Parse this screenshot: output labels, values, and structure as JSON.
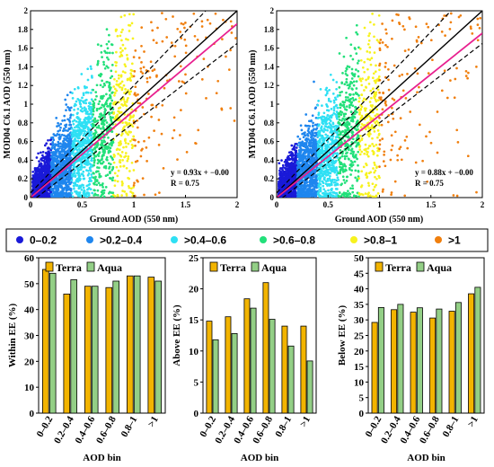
{
  "colors": {
    "bins": [
      "#1a1ad8",
      "#1f86ee",
      "#2ee0f4",
      "#22e07a",
      "#f7f21e",
      "#f07f0e"
    ],
    "fit_line": "#e8208f",
    "terra": "#f2b400",
    "aqua": "#93cf86"
  },
  "legend": {
    "bins": [
      "0–0.2",
      ">0.2–0.4",
      ">0.4–0.6",
      ">0.6–0.8",
      ">0.8–1",
      ">1"
    ]
  },
  "chart_data": [
    {
      "id": "terra-scatter",
      "type": "scatter",
      "xlabel": "Ground AOD (550 nm)",
      "ylabel": "MOD04 C6.1 AOD (550 nm)",
      "xlim": [
        0,
        2
      ],
      "ylim": [
        0,
        2
      ],
      "xticks": [
        "0",
        "0.5",
        "1",
        "1.5",
        "2"
      ],
      "yticks": [
        "0",
        "0.2",
        "0.4",
        "0.6",
        "0.8",
        "1",
        "1.2",
        "1.4",
        "1.6",
        "1.8",
        "2"
      ],
      "fit": {
        "slope": 0.93,
        "intercept": 0.0
      },
      "annotation": [
        "y = 0.93x + −0.00",
        "R = 0.75"
      ]
    },
    {
      "id": "aqua-scatter",
      "type": "scatter",
      "xlabel": "Ground AOD (550 nm)",
      "ylabel": "MYD04 C6.1 AOD (550 nm)",
      "xlim": [
        0,
        2
      ],
      "ylim": [
        0,
        2
      ],
      "xticks": [
        "0",
        "0.5",
        "1",
        "1.5",
        "2"
      ],
      "yticks": [
        "0",
        "0.2",
        "0.4",
        "0.6",
        "0.8",
        "1",
        "1.2",
        "1.4",
        "1.6",
        "1.8",
        "2"
      ],
      "fit": {
        "slope": 0.88,
        "intercept": 0.0
      },
      "annotation": [
        "y = 0.88x + −0.00",
        "R = 0.75"
      ]
    },
    {
      "id": "within-ee",
      "type": "bar",
      "categories": [
        "0–0.2",
        "0.2–0.4",
        "0.4–0.6",
        "0.6–0.8",
        "0.8–1",
        ">1"
      ],
      "xlabel": "AOD bin",
      "ylabel": "Within EE (%)",
      "ylim": [
        0,
        60
      ],
      "yticks": [
        "0",
        "10",
        "20",
        "30",
        "40",
        "50",
        "60"
      ],
      "series": [
        {
          "name": "Terra",
          "values": [
            55.5,
            46.0,
            49.0,
            48.5,
            53.0,
            52.5
          ]
        },
        {
          "name": "Aqua",
          "values": [
            54.0,
            51.5,
            49.0,
            51.0,
            53.0,
            51.0
          ]
        }
      ]
    },
    {
      "id": "above-ee",
      "type": "bar",
      "categories": [
        "0–0.2",
        "0.2–0.4",
        "0.4–0.6",
        "0.6–0.8",
        "0.8–1",
        ">1"
      ],
      "xlabel": "AOD bin",
      "ylabel": "Above EE (%)",
      "ylim": [
        0,
        25
      ],
      "yticks": [
        "0",
        "5",
        "10",
        "15",
        "20",
        "25"
      ],
      "series": [
        {
          "name": "Terra",
          "values": [
            14.8,
            15.5,
            18.4,
            21.0,
            14.0,
            14.0
          ]
        },
        {
          "name": "Aqua",
          "values": [
            11.8,
            12.8,
            16.9,
            15.1,
            10.8,
            8.4
          ]
        }
      ]
    },
    {
      "id": "below-ee",
      "type": "bar",
      "categories": [
        "0–0.2",
        "0.2–0.4",
        "0.4–0.6",
        "0.6–0.8",
        "0.8–1",
        ">1"
      ],
      "xlabel": "AOD bin",
      "ylabel": "Below EE (%)",
      "ylim": [
        0,
        50
      ],
      "yticks": [
        "0",
        "5",
        "10",
        "15",
        "20",
        "25",
        "30",
        "35",
        "40",
        "45",
        "50"
      ],
      "series": [
        {
          "name": "Terra",
          "values": [
            29.2,
            33.3,
            32.5,
            30.6,
            32.8,
            38.4
          ]
        },
        {
          "name": "Aqua",
          "values": [
            34.0,
            35.0,
            33.9,
            33.5,
            35.6,
            40.5
          ]
        }
      ]
    }
  ]
}
